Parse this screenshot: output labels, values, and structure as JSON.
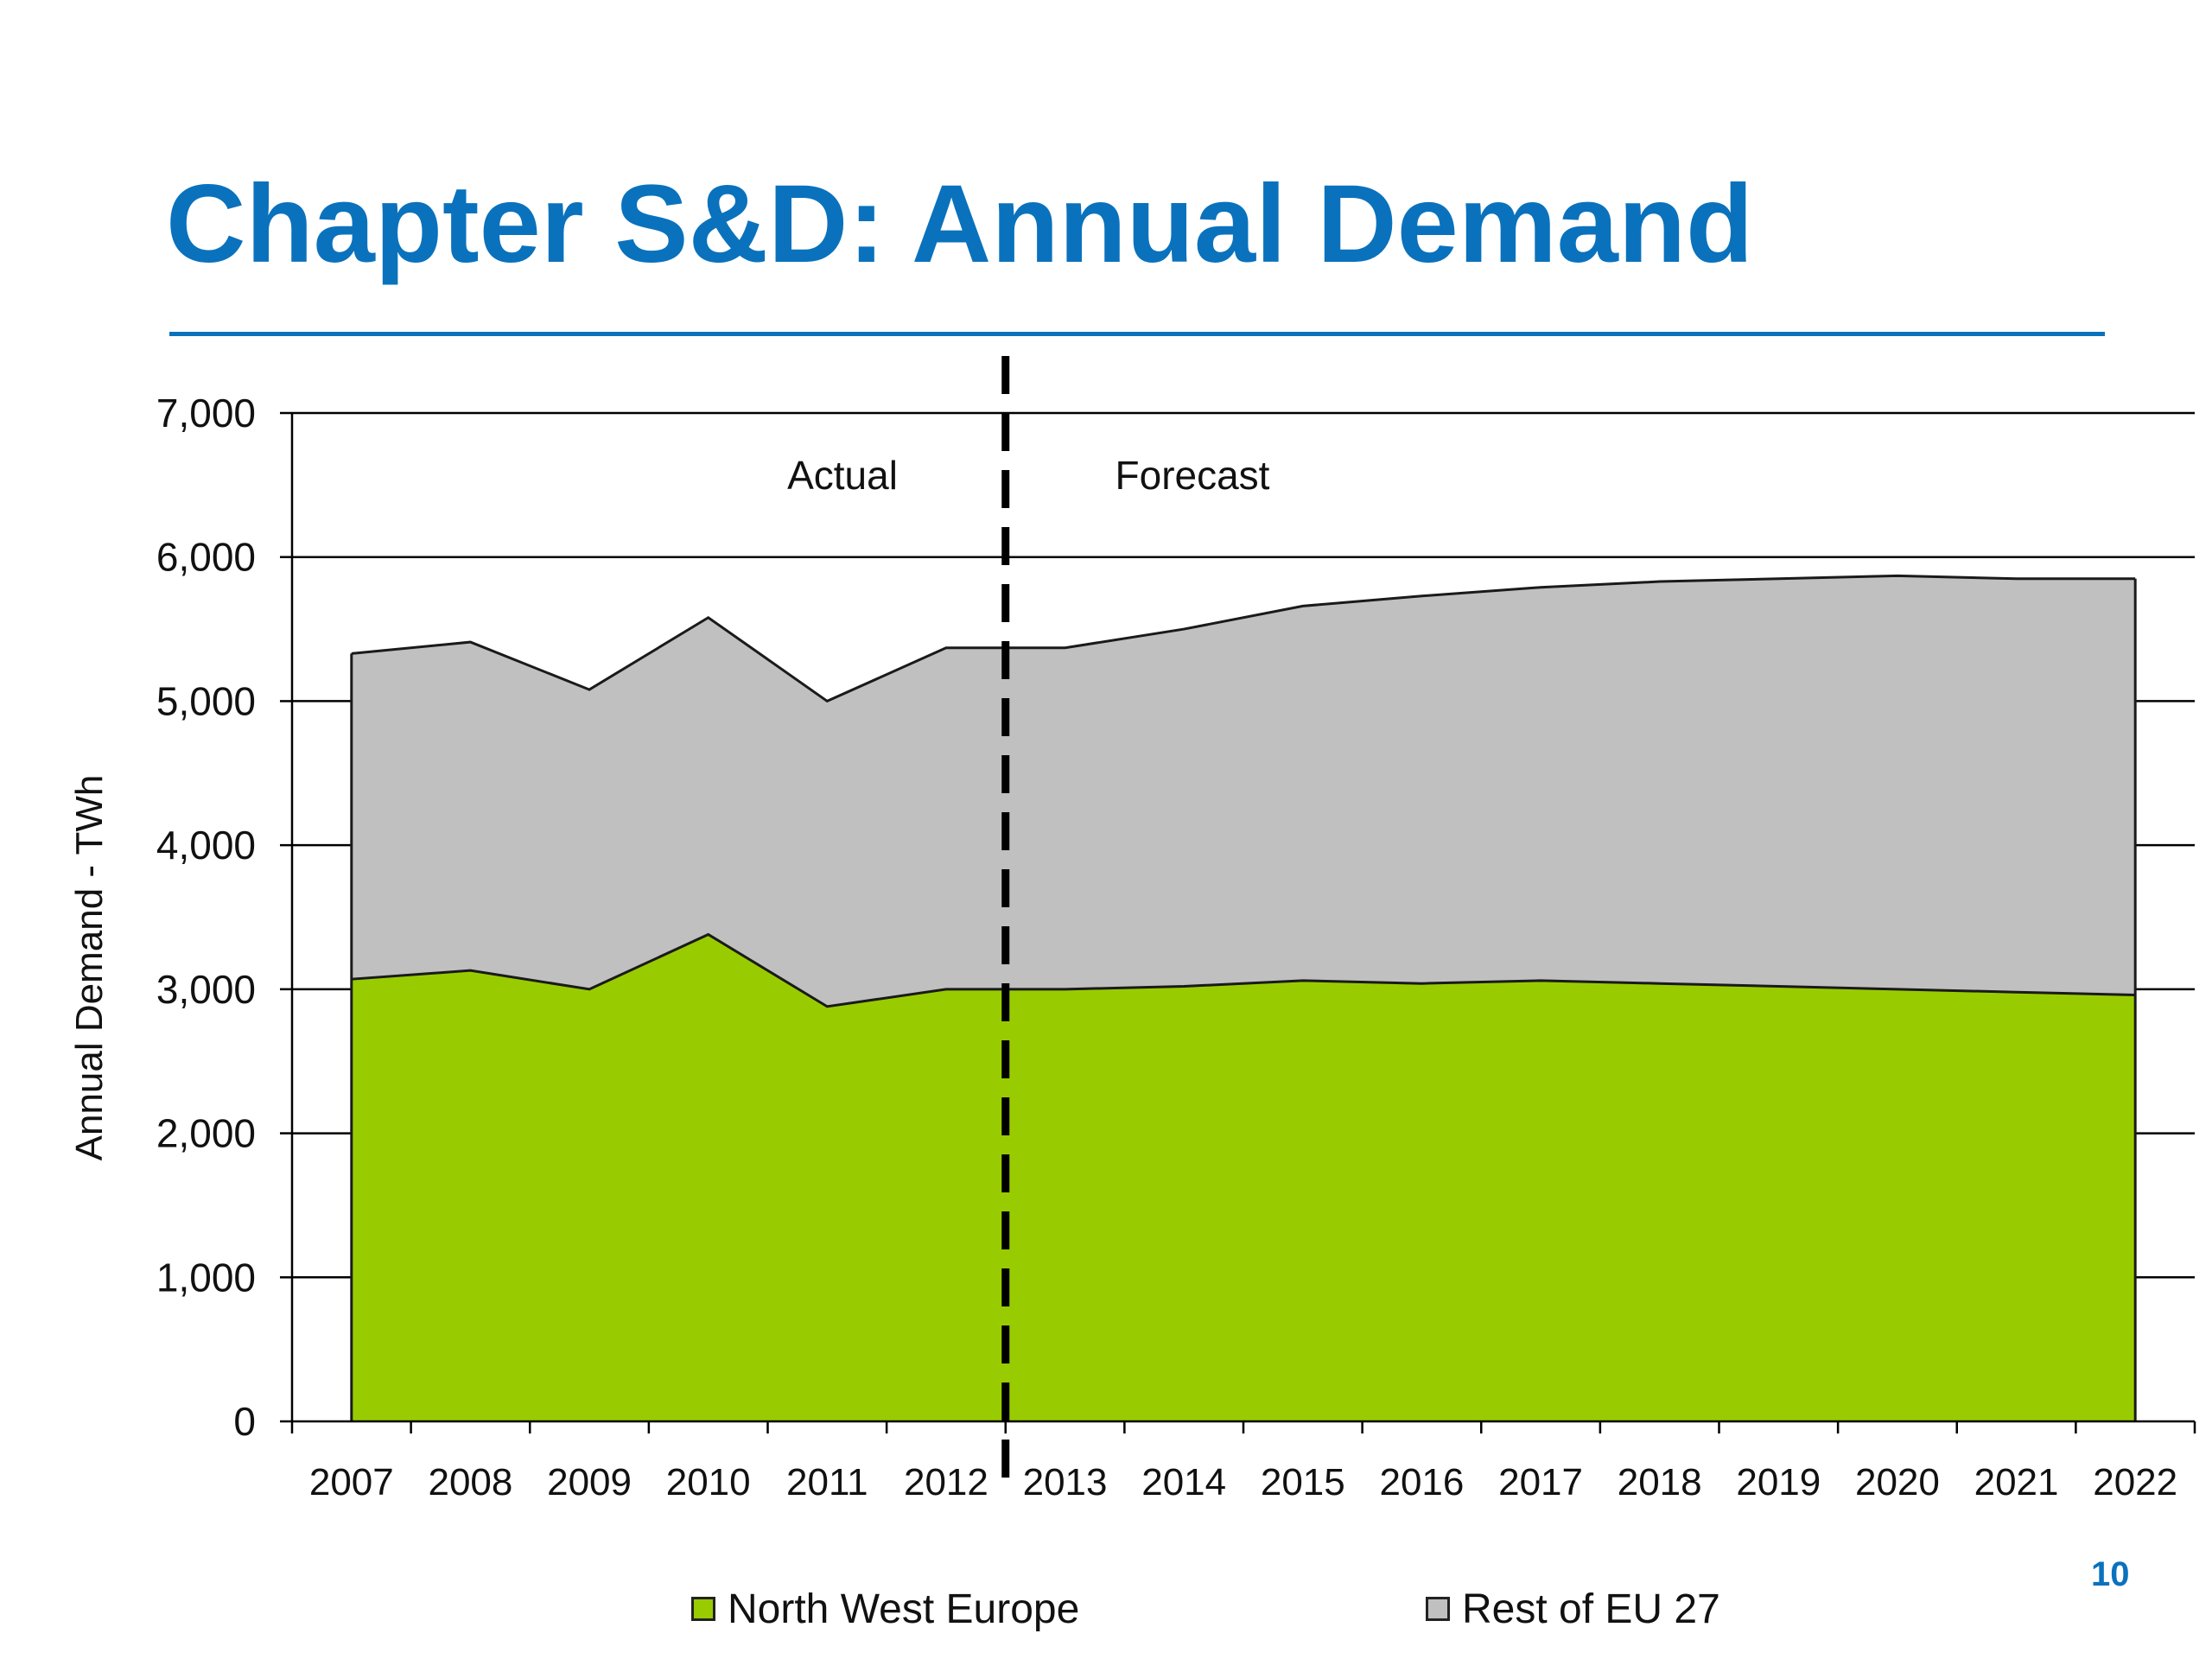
{
  "slide": {
    "title": "Chapter S&D: Annual Demand",
    "page_number": "10"
  },
  "colors": {
    "title_blue": "#0a72bd",
    "north_west_europe": "#99cc00",
    "rest_of_eu27": "#c0c0c0"
  },
  "chart_data": {
    "type": "area",
    "stacked": true,
    "title": "",
    "xlabel": "",
    "ylabel": "Annual Demand - TWh",
    "ylim": [
      0,
      7000
    ],
    "y_ticks": [
      0,
      1000,
      2000,
      3000,
      4000,
      5000,
      6000,
      7000
    ],
    "y_tick_labels": [
      "0",
      "1,000",
      "2,000",
      "3,000",
      "4,000",
      "5,000",
      "6,000",
      "7,000"
    ],
    "grid": "horizontal major gridlines",
    "categories": [
      "2007",
      "2008",
      "2009",
      "2010",
      "2011",
      "2012",
      "2013",
      "2014",
      "2015",
      "2016",
      "2017",
      "2018",
      "2019",
      "2020",
      "2021",
      "2022"
    ],
    "series": [
      {
        "name": "North West Europe",
        "color": "#99cc00",
        "values": [
          3070,
          3130,
          3000,
          3380,
          2880,
          3000,
          3000,
          3020,
          3060,
          3040,
          3060,
          3040,
          3020,
          3000,
          2980,
          2960
        ]
      },
      {
        "name": "Rest of EU 27",
        "color": "#c0c0c0",
        "values": [
          2260,
          2280,
          2080,
          2200,
          2120,
          2370,
          2370,
          2480,
          2600,
          2690,
          2730,
          2790,
          2830,
          2870,
          2870,
          2890
        ]
      }
    ],
    "totals": [
      5330,
      5410,
      5080,
      5580,
      5000,
      5370,
      5370,
      5500,
      5660,
      5730,
      5790,
      5830,
      5850,
      5870,
      5850,
      5850
    ],
    "annotations": [
      {
        "text": "Actual",
        "position": "left of divider"
      },
      {
        "text": "Forecast",
        "position": "right of divider"
      }
    ],
    "divider": {
      "style": "dashed vertical line",
      "between": [
        "2012",
        "2013"
      ]
    },
    "legend": {
      "placement": "bottom",
      "entries": [
        "North West Europe",
        "Rest of EU 27"
      ]
    }
  }
}
